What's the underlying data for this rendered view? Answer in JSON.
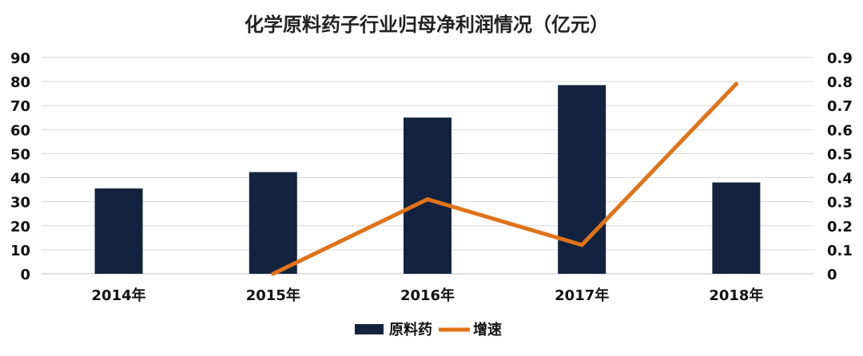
{
  "chart_data": {
    "type": "bar",
    "title": "化学原料药子行业归母净利润情况（亿元）",
    "categories": [
      "2014年",
      "2015年",
      "2016年",
      "2017年",
      "2018年"
    ],
    "series": [
      {
        "name": "原料药",
        "kind": "bar",
        "axis": "left",
        "color": "#13233f",
        "values": [
          35.5,
          42.3,
          65.0,
          78.5,
          38.0
        ]
      },
      {
        "name": "增速",
        "kind": "line",
        "axis": "right",
        "color": "#e07318",
        "values": [
          null,
          0.0,
          0.31,
          0.12,
          0.79
        ]
      }
    ],
    "y_left": {
      "min": 0,
      "max": 90,
      "ticks": [
        "0",
        "10",
        "20",
        "30",
        "40",
        "50",
        "60",
        "70",
        "80",
        "90"
      ]
    },
    "y_right": {
      "min": 0,
      "max": 0.9,
      "ticks": [
        "0",
        "0.1",
        "0.2",
        "0.3",
        "0.4",
        "0.5",
        "0.6",
        "0.7",
        "0.8",
        "0.9"
      ]
    },
    "grid": true,
    "legend_position": "bottom"
  }
}
